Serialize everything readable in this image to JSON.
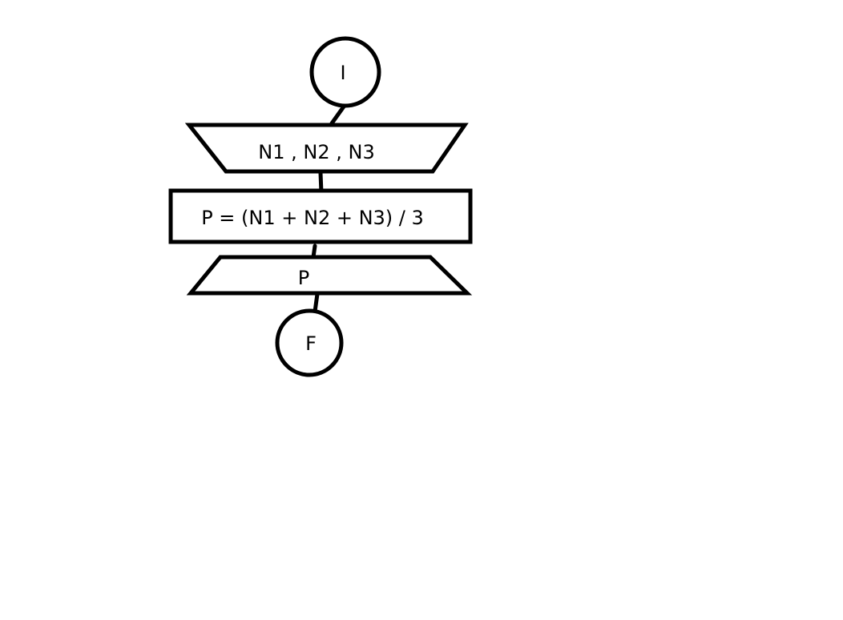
{
  "diagram": {
    "start": {
      "label": "I"
    },
    "input": {
      "label": "N1 , N2 , N3"
    },
    "process": {
      "label": "P = (N1 + N2 + N3) / 3"
    },
    "output": {
      "label": "P"
    },
    "end": {
      "label": "F"
    }
  },
  "colors": {
    "stroke": "#000000",
    "background": "#ffffff"
  }
}
